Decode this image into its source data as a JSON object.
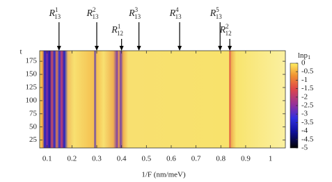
{
  "chart_data": {
    "type": "heatmap",
    "x_label": "1/F (nm/meV)",
    "y_label": "t",
    "xlim": [
      0.07,
      1.06
    ],
    "xticks": [
      0.1,
      0.2,
      0.3,
      0.4,
      0.5,
      0.6,
      0.7,
      0.8,
      0.9,
      1
    ],
    "ylim": [
      10,
      195
    ],
    "yticks": [
      25,
      50,
      75,
      100,
      125,
      150,
      175
    ],
    "colorbar": {
      "label": {
        "base": "lnp",
        "sub": "1"
      },
      "lim": [
        -5,
        0
      ],
      "ticks": [
        0,
        -0.5,
        -1,
        -1.5,
        -2,
        -2.5,
        -3,
        -3.5,
        -4,
        -4.5,
        -5
      ]
    },
    "annotations": [
      {
        "symbol": "R",
        "sup": "1",
        "sub": "13",
        "x": 0.148
      },
      {
        "symbol": "R",
        "sup": "2",
        "sub": "13",
        "x": 0.3
      },
      {
        "symbol": "R",
        "sup": "1",
        "sub": "12",
        "x": 0.4
      },
      {
        "symbol": "R",
        "sup": "3",
        "sub": "13",
        "x": 0.47
      },
      {
        "symbol": "R",
        "sup": "4",
        "sub": "13",
        "x": 0.634
      },
      {
        "symbol": "R",
        "sup": "5",
        "sub": "13",
        "x": 0.797
      },
      {
        "symbol": "R",
        "sup": "2",
        "sub": "12",
        "x": 0.836
      }
    ]
  }
}
